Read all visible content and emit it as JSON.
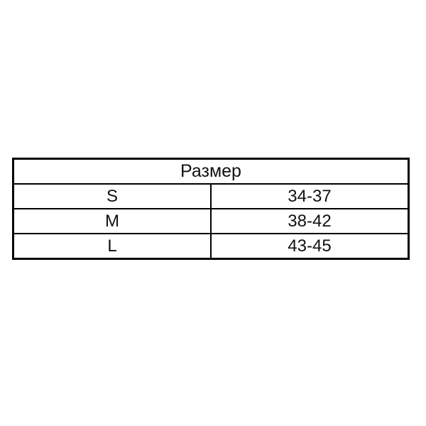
{
  "page": {
    "background_color": "#ffffff"
  },
  "size_table": {
    "header": "Размер",
    "rows": [
      {
        "size": "S",
        "range": "34-37"
      },
      {
        "size": "M",
        "range": "38-42"
      },
      {
        "size": "L",
        "range": "43-45"
      }
    ],
    "border_color": "#000000",
    "text_color": "#111111"
  }
}
